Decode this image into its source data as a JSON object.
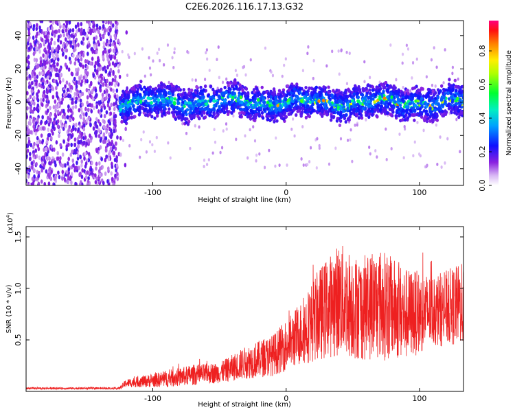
{
  "chart_data": [
    {
      "type": "heatmap",
      "title": "C2E6.2026.116.17.13.G32",
      "xlabel": "Height of straight line (km)",
      "ylabel": "Frequency (Hz)",
      "xlim": [
        -195,
        133
      ],
      "ylim": [
        -50,
        49
      ],
      "xticks": [
        -100,
        0,
        100
      ],
      "yticks": [
        -40,
        -20,
        0,
        20,
        40
      ],
      "colorbar": {
        "label": "Normalized spectral amplitude",
        "range": [
          0,
          0.98
        ],
        "ticks": [
          0.0,
          0.2,
          0.4,
          0.6,
          0.8
        ],
        "tick_labels": [
          "0.0",
          "0.2",
          "0.4",
          "0.6",
          "0.8"
        ],
        "colormap": [
          "#ffffff",
          "#7b00d6",
          "#0000ff",
          "#00c8ff",
          "#00ff40",
          "#ffff00",
          "#ff8000",
          "#ff0000",
          "#ff0080"
        ]
      },
      "description_regions": [
        {
          "x_range": [
            -195,
            -125
          ],
          "freq_range": [
            -50,
            49
          ],
          "level": 0.12
        },
        {
          "x_range": [
            -125,
            133
          ],
          "freq_center": 0,
          "freq_halfwidth": 8,
          "level": 0.3
        }
      ]
    },
    {
      "type": "line",
      "xlabel": "Height of straight line (km)",
      "ylabel": "SNR (10 * v/v)",
      "scale_label": "(x10",
      "scale_exp": "4",
      "scale_close": ")",
      "xlim": [
        -195,
        133
      ],
      "ylim": [
        0,
        1.6
      ],
      "xticks": [
        -100,
        0,
        100
      ],
      "yticks": [
        0.5,
        1.0,
        1.5
      ],
      "ytick_labels": [
        "0.5",
        "1.0",
        "1.5"
      ],
      "color": "#ee2020",
      "envelope": [
        {
          "x": -195,
          "mean": 0.03,
          "amp": 0.01
        },
        {
          "x": -125,
          "mean": 0.03,
          "amp": 0.01
        },
        {
          "x": -120,
          "mean": 0.08,
          "amp": 0.04
        },
        {
          "x": -90,
          "mean": 0.12,
          "amp": 0.08
        },
        {
          "x": -70,
          "mean": 0.16,
          "amp": 0.1
        },
        {
          "x": -50,
          "mean": 0.18,
          "amp": 0.1
        },
        {
          "x": -30,
          "mean": 0.28,
          "amp": 0.16
        },
        {
          "x": -10,
          "mean": 0.35,
          "amp": 0.2
        },
        {
          "x": 10,
          "mean": 0.55,
          "amp": 0.3
        },
        {
          "x": 25,
          "mean": 0.75,
          "amp": 0.45
        },
        {
          "x": 40,
          "mean": 0.9,
          "amp": 0.55
        },
        {
          "x": 55,
          "mean": 0.8,
          "amp": 0.5
        },
        {
          "x": 70,
          "mean": 0.85,
          "amp": 0.55
        },
        {
          "x": 90,
          "mean": 0.75,
          "amp": 0.45
        },
        {
          "x": 110,
          "mean": 0.78,
          "amp": 0.35
        },
        {
          "x": 133,
          "mean": 0.85,
          "amp": 0.4
        }
      ]
    }
  ]
}
